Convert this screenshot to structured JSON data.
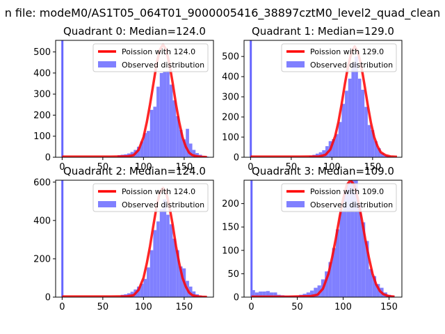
{
  "figure_title": "n file: modeM0/AS1T05_064T01_9000005416_38897cztM0_level2_quad_clean",
  "legend": {
    "poisson_prefix": "Poission with",
    "observed": "Observed distribution"
  },
  "colors": {
    "poisson": "#ff0000",
    "hist": "#8080ff",
    "spike": "#6666ff"
  },
  "chart_data": [
    {
      "type": "bar",
      "title": "Quadrant 0: Median=124.0",
      "median": 124.0,
      "poisson_label": "Poission with 124.0",
      "legend_position": "upper right",
      "xlim": [
        -8,
        186
      ],
      "ylim": [
        0,
        555
      ],
      "xticks": [
        0,
        50,
        100,
        150
      ],
      "yticks": [
        0,
        100,
        200,
        300,
        400,
        500
      ],
      "bin_width": 4,
      "bins": [
        [
          -1,
          1000
        ],
        [
          68,
          10
        ],
        [
          72,
          12
        ],
        [
          76,
          14
        ],
        [
          80,
          18
        ],
        [
          84,
          25
        ],
        [
          88,
          35
        ],
        [
          92,
          50
        ],
        [
          96,
          75
        ],
        [
          100,
          115
        ],
        [
          104,
          125
        ],
        [
          108,
          225
        ],
        [
          112,
          240
        ],
        [
          116,
          335
        ],
        [
          120,
          400
        ],
        [
          124,
          405
        ],
        [
          128,
          410
        ],
        [
          132,
          345
        ],
        [
          136,
          270
        ],
        [
          140,
          195
        ],
        [
          144,
          130
        ],
        [
          148,
          85
        ],
        [
          152,
          135
        ],
        [
          156,
          65
        ],
        [
          160,
          35
        ],
        [
          164,
          20
        ],
        [
          168,
          12
        ],
        [
          172,
          6
        ],
        [
          176,
          3
        ]
      ],
      "poisson_x": [
        0,
        60,
        80,
        88,
        94,
        100,
        104,
        108,
        112,
        116,
        120,
        124,
        128,
        132,
        136,
        140,
        144,
        148,
        152,
        156,
        160,
        166,
        172,
        178
      ],
      "poisson_y": [
        3,
        3,
        4,
        10,
        35,
        95,
        165,
        250,
        345,
        440,
        510,
        535,
        510,
        440,
        350,
        250,
        165,
        95,
        50,
        22,
        10,
        4,
        2,
        1
      ]
    },
    {
      "type": "bar",
      "title": "Quadrant 1: Median=129.0",
      "median": 129.0,
      "poisson_label": "Poission with 129.0",
      "legend_position": "upper right",
      "xlim": [
        -8,
        186
      ],
      "ylim": [
        0,
        580
      ],
      "xticks": [
        0,
        50,
        100,
        150
      ],
      "yticks": [
        0,
        100,
        200,
        300,
        400,
        500
      ],
      "bin_width": 4,
      "bins": [
        [
          -1,
          1000
        ],
        [
          72,
          8
        ],
        [
          76,
          12
        ],
        [
          80,
          18
        ],
        [
          84,
          25
        ],
        [
          88,
          35
        ],
        [
          92,
          55
        ],
        [
          96,
          80
        ],
        [
          100,
          90
        ],
        [
          104,
          115
        ],
        [
          108,
          175
        ],
        [
          112,
          265
        ],
        [
          116,
          330
        ],
        [
          120,
          390
        ],
        [
          124,
          470
        ],
        [
          128,
          500
        ],
        [
          132,
          390
        ],
        [
          136,
          335
        ],
        [
          140,
          250
        ],
        [
          144,
          160
        ],
        [
          148,
          135
        ],
        [
          152,
          80
        ],
        [
          156,
          45
        ],
        [
          160,
          20
        ],
        [
          164,
          10
        ],
        [
          168,
          6
        ],
        [
          172,
          3
        ]
      ],
      "poisson_x": [
        0,
        60,
        84,
        92,
        98,
        104,
        108,
        112,
        116,
        120,
        124,
        128,
        132,
        136,
        140,
        144,
        148,
        152,
        156,
        160,
        166,
        172,
        180
      ],
      "poisson_y": [
        3,
        3,
        4,
        12,
        38,
        105,
        175,
        265,
        365,
        455,
        520,
        550,
        520,
        455,
        360,
        260,
        170,
        100,
        55,
        25,
        10,
        4,
        2
      ]
    },
    {
      "type": "bar",
      "title": "Quadrant 2: Median=124.0",
      "median": 124.0,
      "poisson_label": "Poission with 124.0",
      "legend_position": "upper right",
      "xlim": [
        -8,
        186
      ],
      "ylim": [
        0,
        610
      ],
      "xticks": [
        0,
        50,
        100,
        150
      ],
      "yticks": [
        0,
        200,
        400,
        600
      ],
      "bin_width": 4,
      "bins": [
        [
          -1,
          1000
        ],
        [
          72,
          12
        ],
        [
          76,
          15
        ],
        [
          80,
          20
        ],
        [
          84,
          28
        ],
        [
          88,
          40
        ],
        [
          92,
          55
        ],
        [
          96,
          70
        ],
        [
          100,
          95
        ],
        [
          104,
          155
        ],
        [
          108,
          245
        ],
        [
          112,
          350
        ],
        [
          116,
          395
        ],
        [
          120,
          460
        ],
        [
          124,
          510
        ],
        [
          128,
          430
        ],
        [
          132,
          380
        ],
        [
          136,
          305
        ],
        [
          140,
          245
        ],
        [
          144,
          160
        ],
        [
          148,
          150
        ],
        [
          152,
          85
        ],
        [
          156,
          55
        ],
        [
          160,
          30
        ],
        [
          164,
          15
        ],
        [
          168,
          8
        ],
        [
          172,
          4
        ],
        [
          176,
          2
        ]
      ],
      "poisson_x": [
        0,
        60,
        80,
        88,
        94,
        100,
        104,
        108,
        112,
        116,
        120,
        124,
        128,
        132,
        136,
        140,
        144,
        148,
        152,
        156,
        160,
        166,
        172,
        178
      ],
      "poisson_y": [
        3,
        3,
        4,
        10,
        38,
        100,
        175,
        265,
        370,
        470,
        545,
        570,
        545,
        470,
        375,
        265,
        175,
        100,
        55,
        24,
        10,
        4,
        2,
        1
      ]
    },
    {
      "type": "bar",
      "title": "Quadrant 3: Median=109.0",
      "median": 109.0,
      "poisson_label": "Poission with 109.0",
      "legend_position": "upper right",
      "xlim": [
        -8,
        164
      ],
      "ylim": [
        0,
        250
      ],
      "xticks": [
        0,
        50,
        100,
        150
      ],
      "yticks": [
        0,
        50,
        100,
        150,
        200
      ],
      "bin_width": 4,
      "bins": [
        [
          -1,
          1000
        ],
        [
          0,
          15
        ],
        [
          4,
          10
        ],
        [
          8,
          12
        ],
        [
          12,
          12
        ],
        [
          16,
          13
        ],
        [
          20,
          10
        ],
        [
          24,
          10
        ],
        [
          28,
          5
        ],
        [
          32,
          4
        ],
        [
          36,
          3
        ],
        [
          40,
          3
        ],
        [
          44,
          3
        ],
        [
          48,
          3
        ],
        [
          52,
          5
        ],
        [
          56,
          7
        ],
        [
          60,
          10
        ],
        [
          64,
          14
        ],
        [
          68,
          20
        ],
        [
          72,
          25
        ],
        [
          76,
          38
        ],
        [
          80,
          55
        ],
        [
          84,
          75
        ],
        [
          88,
          105
        ],
        [
          92,
          145
        ],
        [
          96,
          185
        ],
        [
          100,
          225
        ],
        [
          104,
          245
        ],
        [
          108,
          275
        ],
        [
          112,
          255
        ],
        [
          116,
          200
        ],
        [
          120,
          160
        ],
        [
          124,
          120
        ],
        [
          128,
          60
        ],
        [
          132,
          45
        ],
        [
          136,
          28
        ],
        [
          140,
          20
        ],
        [
          144,
          10
        ],
        [
          148,
          5
        ],
        [
          152,
          3
        ]
      ],
      "poisson_x": [
        0,
        40,
        64,
        72,
        78,
        84,
        88,
        92,
        96,
        100,
        104,
        108,
        112,
        116,
        120,
        124,
        128,
        132,
        136,
        140,
        144,
        150,
        156
      ],
      "poisson_y": [
        1,
        1,
        2,
        5,
        18,
        50,
        85,
        125,
        170,
        210,
        240,
        250,
        240,
        210,
        170,
        125,
        85,
        50,
        27,
        13,
        6,
        2,
        1
      ]
    }
  ]
}
